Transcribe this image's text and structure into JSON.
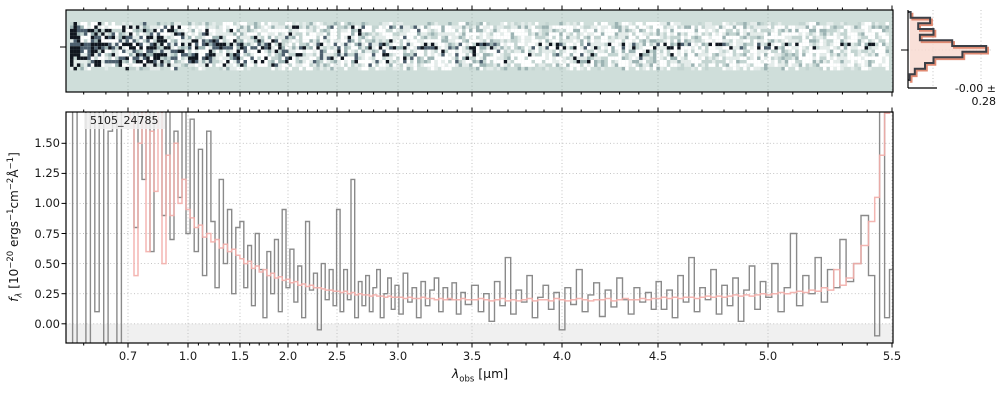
{
  "figure": {
    "background": "#ffffff",
    "colors": {
      "spectrum_gray": "#8a8a8a",
      "error_pink": "#f3aeaa",
      "negative_band": "#f0f0f0",
      "grid": "#bdbdbd",
      "spine": "#000000",
      "spec2d_background": "#cfdeda",
      "hist_fill": "#f8dbd1",
      "hist_salmon": "#e08a72",
      "hist_edge": "#3b3f46",
      "noise_dark": "#10161f",
      "noise_mid": "#4d5f6e",
      "noise_light": "#c3d4d1"
    }
  },
  "chart_data": [
    {
      "id": "spec2d",
      "type": "heatmap",
      "description": "2D rectified spectrum strip; noisy dark pixels dense at blue end, dark spectral trace along center row fading to red end, pale teal background",
      "x_range_um": [
        0.42,
        5.51
      ],
      "shares_x_axis_with": "spec1d",
      "background": "#cfdeda"
    },
    {
      "id": "spec1d",
      "type": "line",
      "title": "5105_24785",
      "xlabel": {
        "symbol": "λ",
        "sub": "obs",
        "unit": " [μm]"
      },
      "ylabel": {
        "symbol": "f",
        "sub": "λ",
        "unit_parts": [
          " [10",
          "−20",
          " ergs",
          "−1",
          "cm",
          "−2",
          "Å",
          "−1",
          "]"
        ]
      },
      "xlim": [
        0.42,
        5.51
      ],
      "ylim": [
        -0.16,
        1.76
      ],
      "grid": true,
      "legend": false,
      "x_ticks": [
        0.7,
        1.0,
        1.5,
        2.0,
        2.5,
        3.0,
        3.5,
        4.0,
        4.5,
        5.0,
        5.5
      ],
      "x_tick_labels": [
        "0.7",
        "1.0",
        "1.5",
        "2.0",
        "2.5",
        "3.0",
        "3.5",
        "4.0",
        "4.5",
        "5.0",
        "5.5"
      ],
      "x_minor_tick_step": 0.1,
      "y_ticks": [
        0,
        0.25,
        0.5,
        0.75,
        1.0,
        1.25,
        1.5
      ],
      "y_tick_labels": [
        "0.00",
        "0.25",
        "0.50",
        "0.75",
        "1.00",
        "1.25",
        "1.50"
      ],
      "x_scale_map": [
        [
          0.42,
          0.0
        ],
        [
          0.7,
          0.075
        ],
        [
          1.0,
          0.1475
        ],
        [
          1.5,
          0.2104
        ],
        [
          2.0,
          0.2684
        ],
        [
          2.5,
          0.3277
        ],
        [
          3.0,
          0.4015
        ],
        [
          3.5,
          0.4909
        ],
        [
          4.0,
          0.5998
        ],
        [
          4.5,
          0.7159
        ],
        [
          5.0,
          0.8489
        ],
        [
          5.5,
          0.9988
        ],
        [
          5.51,
          1.0
        ]
      ],
      "wavelength": [
        0.44,
        0.46,
        0.48,
        0.5,
        0.52,
        0.54,
        0.56,
        0.58,
        0.6,
        0.62,
        0.64,
        0.66,
        0.68,
        0.7,
        0.72,
        0.74,
        0.76,
        0.78,
        0.8,
        0.82,
        0.84,
        0.86,
        0.88,
        0.9,
        0.92,
        0.94,
        0.96,
        0.98,
        1.0,
        1.04,
        1.08,
        1.12,
        1.16,
        1.2,
        1.24,
        1.28,
        1.32,
        1.36,
        1.4,
        1.44,
        1.48,
        1.52,
        1.56,
        1.6,
        1.64,
        1.68,
        1.72,
        1.76,
        1.8,
        1.84,
        1.88,
        1.92,
        1.96,
        2.0,
        2.04,
        2.08,
        2.12,
        2.16,
        2.2,
        2.24,
        2.28,
        2.32,
        2.36,
        2.4,
        2.44,
        2.48,
        2.51,
        2.54,
        2.57,
        2.6,
        2.63,
        2.66,
        2.69,
        2.72,
        2.75,
        2.78,
        2.81,
        2.84,
        2.87,
        2.9,
        2.93,
        2.96,
        2.99,
        3.02,
        3.05,
        3.08,
        3.11,
        3.14,
        3.17,
        3.2,
        3.23,
        3.26,
        3.29,
        3.32,
        3.35,
        3.38,
        3.41,
        3.44,
        3.47,
        3.52,
        3.55,
        3.58,
        3.61,
        3.64,
        3.67,
        3.7,
        3.73,
        3.76,
        3.79,
        3.82,
        3.85,
        3.88,
        3.91,
        3.94,
        3.97,
        4.0,
        4.03,
        4.06,
        4.09,
        4.12,
        4.15,
        4.18,
        4.21,
        4.24,
        4.27,
        4.3,
        4.33,
        4.36,
        4.39,
        4.42,
        4.45,
        4.48,
        4.5,
        4.53,
        4.55,
        4.58,
        4.6,
        4.63,
        4.65,
        4.68,
        4.7,
        4.73,
        4.75,
        4.78,
        4.8,
        4.83,
        4.85,
        4.88,
        4.9,
        4.93,
        4.95,
        4.98,
        5.0,
        5.03,
        5.05,
        5.08,
        5.1,
        5.13,
        5.15,
        5.18,
        5.2,
        5.23,
        5.25,
        5.28,
        5.3,
        5.33,
        5.36,
        5.39,
        5.42,
        5.44,
        5.46,
        5.48,
        5.5
      ],
      "series": [
        {
          "name": "observed-spectrum",
          "color": "#8a8a8a",
          "style": "steps-mid",
          "values": [
            2.4,
            -0.4,
            1.9,
            2.6,
            -0.6,
            2.2,
            0.1,
            2.8,
            -0.3,
            1.6,
            2.4,
            -0.5,
            2.0,
            2.6,
            2.2,
            0.8,
            1.9,
            1.2,
            2.4,
            0.6,
            1.8,
            2.1,
            0.9,
            2.0,
            0.7,
            1.6,
            1.05,
            1.85,
            0.75,
            1.7,
            0.6,
            1.45,
            0.4,
            1.6,
            0.85,
            0.3,
            1.2,
            0.5,
            0.95,
            0.25,
            0.8,
            0.85,
            0.3,
            0.65,
            0.15,
            0.75,
            0.45,
            0.05,
            0.6,
            0.25,
            0.7,
            0.1,
            0.95,
            0.3,
            0.62,
            0.18,
            0.48,
            0.05,
            0.85,
            0.28,
            0.42,
            -0.05,
            0.5,
            0.2,
            0.45,
            0.15,
            0.95,
            0.1,
            0.45,
            0.2,
            1.2,
            0.05,
            0.35,
            0.15,
            0.4,
            0.1,
            0.3,
            0.45,
            0.05,
            0.25,
            0.38,
            0.12,
            0.32,
            0.08,
            0.42,
            0.18,
            0.3,
            0.05,
            0.35,
            0.15,
            0.28,
            0.38,
            0.1,
            0.3,
            0.2,
            0.34,
            0.08,
            0.26,
            0.16,
            0.32,
            0.1,
            0.25,
            0.02,
            0.35,
            0.15,
            0.55,
            0.08,
            0.28,
            0.18,
            0.4,
            0.05,
            0.22,
            0.32,
            0.12,
            0.26,
            -0.05,
            0.3,
            0.16,
            0.45,
            0.1,
            0.24,
            0.34,
            0.06,
            0.28,
            0.14,
            0.38,
            0.2,
            0.08,
            0.3,
            0.18,
            0.26,
            0.12,
            0.35,
            0.12,
            0.28,
            0.05,
            0.4,
            0.18,
            0.55,
            0.1,
            0.3,
            0.2,
            0.45,
            0.08,
            0.32,
            0.15,
            0.38,
            0.02,
            0.28,
            0.48,
            0.12,
            0.35,
            0.22,
            0.5,
            0.1,
            0.3,
            0.75,
            0.15,
            0.4,
            0.25,
            0.55,
            0.18,
            0.45,
            0.3,
            0.7,
            0.35,
            0.5,
            0.9,
            0.4,
            -0.1,
            1.9,
            0.05,
            0.45
          ]
        },
        {
          "name": "error",
          "color": "#f3aeaa",
          "style": "steps-mid",
          "values": [
            2.5,
            3.0,
            2.2,
            2.8,
            3.2,
            2.0,
            2.6,
            1.9,
            2.4,
            2.1,
            2.7,
            3.0,
            2.3,
            2.5,
            1.7,
            0.4,
            1.5,
            2.0,
            0.6,
            1.6,
            1.1,
            1.8,
            0.5,
            1.4,
            0.9,
            1.5,
            1.0,
            1.2,
            0.95,
            0.88,
            0.8,
            0.82,
            0.72,
            0.75,
            0.68,
            0.7,
            0.63,
            0.66,
            0.6,
            0.62,
            0.57,
            0.54,
            0.5,
            0.52,
            0.46,
            0.48,
            0.43,
            0.45,
            0.4,
            0.42,
            0.38,
            0.39,
            0.36,
            0.37,
            0.34,
            0.35,
            0.32,
            0.33,
            0.31,
            0.32,
            0.3,
            0.3,
            0.29,
            0.28,
            0.28,
            0.27,
            0.27,
            0.26,
            0.27,
            0.25,
            0.26,
            0.24,
            0.25,
            0.24,
            0.24,
            0.23,
            0.24,
            0.23,
            0.23,
            0.22,
            0.23,
            0.22,
            0.22,
            0.22,
            0.21,
            0.22,
            0.21,
            0.21,
            0.22,
            0.21,
            0.21,
            0.2,
            0.21,
            0.2,
            0.21,
            0.2,
            0.2,
            0.21,
            0.2,
            0.2,
            0.21,
            0.2,
            0.19,
            0.2,
            0.21,
            0.19,
            0.2,
            0.19,
            0.2,
            0.21,
            0.19,
            0.2,
            0.2,
            0.19,
            0.21,
            0.2,
            0.19,
            0.2,
            0.21,
            0.2,
            0.19,
            0.2,
            0.2,
            0.21,
            0.19,
            0.2,
            0.21,
            0.2,
            0.2,
            0.21,
            0.2,
            0.21,
            0.21,
            0.22,
            0.21,
            0.22,
            0.21,
            0.22,
            0.22,
            0.21,
            0.22,
            0.23,
            0.22,
            0.23,
            0.22,
            0.23,
            0.24,
            0.23,
            0.24,
            0.23,
            0.24,
            0.25,
            0.24,
            0.25,
            0.26,
            0.25,
            0.26,
            0.27,
            0.26,
            0.28,
            0.27,
            0.3,
            0.28,
            0.45,
            0.32,
            0.38,
            0.5,
            0.65,
            0.85,
            1.05,
            1.4,
            1.75,
            1.95
          ]
        }
      ]
    },
    {
      "id": "pixel_hist",
      "type": "bar",
      "orientation": "horizontal",
      "description": "histogram of 2D-spectrum pixel values, peaked at zero",
      "bin_fractions_top_to_bottom": [
        0.03,
        0.26,
        0.12,
        0.3,
        0.14,
        0.52,
        0.92,
        0.64,
        0.3,
        0.2,
        0.08,
        0.02
      ],
      "annotation": "-0.00 ± 0.28"
    }
  ]
}
